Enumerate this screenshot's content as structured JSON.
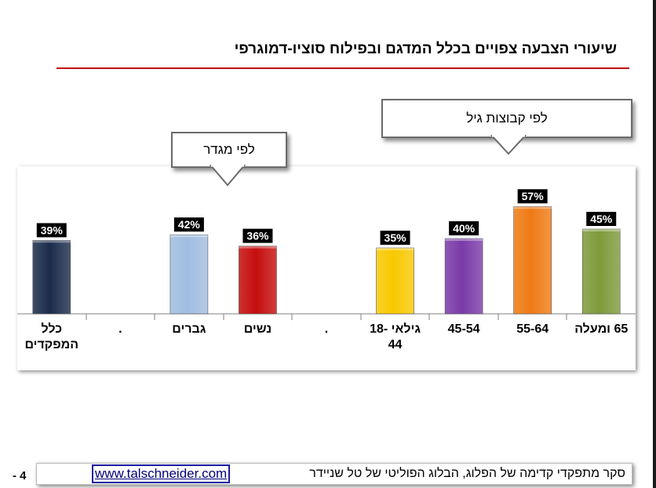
{
  "title": "שיעורי הצבעה צפויים בכלל המדגם ובפילוח סוציו-דמוגרפי",
  "callouts": {
    "gender": "לפי מגדר",
    "age": "לפי קבוצות גיל"
  },
  "footer": {
    "text": "סקר מתפקדי קדימה של הפלוג, הבלוג הפוליטי של טל שניידר",
    "link": "www.talschneider.com"
  },
  "page_number": "- 4",
  "colors": {
    "title_rule": "#c00000"
  },
  "chart_data": {
    "type": "bar",
    "title": "",
    "xlabel": "",
    "ylabel": "",
    "ylim": [
      0,
      70
    ],
    "grid": false,
    "categories": [
      "כלל המפקדים",
      ".",
      "גברים",
      "נשים",
      ".",
      "גילאי -18 44",
      "45-54",
      "55-64",
      "65 ומעלה"
    ],
    "category_lines": [
      [
        "כלל",
        "המפקדים"
      ],
      [
        "."
      ],
      [
        "גברים"
      ],
      [
        "נשים"
      ],
      [
        "."
      ],
      [
        "גילאי -18",
        "44"
      ],
      [
        "45-54"
      ],
      [
        "55-64"
      ],
      [
        "65 ומעלה"
      ]
    ],
    "values": [
      39,
      null,
      42,
      36,
      null,
      35,
      40,
      57,
      45
    ],
    "value_labels": [
      "39%",
      "",
      "42%",
      "36%",
      "",
      "35%",
      "40%",
      "57%",
      "45%"
    ],
    "colors": [
      "#1b2b4b",
      "",
      "#a0bde0",
      "#c50d0d",
      "",
      "#f8c800",
      "#7a3aa8",
      "#ef7a14",
      "#7e9a3a"
    ]
  }
}
